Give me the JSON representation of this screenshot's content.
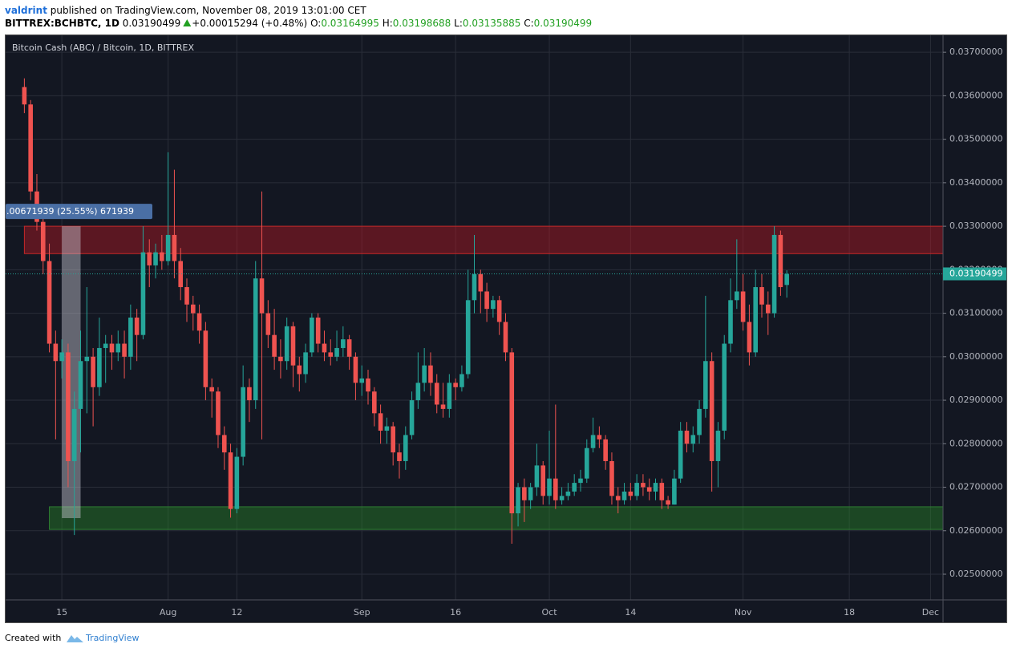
{
  "header": {
    "author": "valdrint",
    "published": "published on TradingView.com, November 08, 2019 13:01:00 CET"
  },
  "quote": {
    "symbol": "BITTREX:BCHBTC, 1D",
    "last": "0.03190499",
    "change": "+0.00015294 (+0.48%)",
    "o_label": "O:",
    "o": "0.03164995",
    "h_label": "H:",
    "h": "0.03198688",
    "l_label": "L:",
    "l": "0.03135885",
    "c_label": "C:",
    "c": "0.03190499"
  },
  "footer": {
    "created": "Created with",
    "brand": "TradingView"
  },
  "chart_data": {
    "type": "candlestick",
    "title": "Bitcoin Cash (ABC) / Bitcoin, 1D, BITTREX",
    "up_color": "#26a69a",
    "down_color": "#ef5350",
    "background": "#131722",
    "grid": true,
    "xlim": [
      "2019-07-06",
      "2019-12-03"
    ],
    "xticks": [
      {
        "value": "2019-07-15",
        "label": "15"
      },
      {
        "value": "2019-08-01",
        "label": "Aug"
      },
      {
        "value": "2019-08-12",
        "label": "12"
      },
      {
        "value": "2019-09-01",
        "label": "Sep"
      },
      {
        "value": "2019-09-16",
        "label": "16"
      },
      {
        "value": "2019-10-01",
        "label": "Oct"
      },
      {
        "value": "2019-10-14",
        "label": "14"
      },
      {
        "value": "2019-11-01",
        "label": "Nov"
      },
      {
        "value": "2019-11-18",
        "label": "18"
      },
      {
        "value": "2019-12-01",
        "label": "Dec"
      }
    ],
    "ylim": [
      0.02441,
      0.03739
    ],
    "yticks": [
      {
        "value": 0.025,
        "label": "0.02500000"
      },
      {
        "value": 0.026,
        "label": "0.02600000"
      },
      {
        "value": 0.027,
        "label": "0.02700000"
      },
      {
        "value": 0.028,
        "label": "0.02800000"
      },
      {
        "value": 0.029,
        "label": "0.02900000"
      },
      {
        "value": 0.03,
        "label": "0.03000000"
      },
      {
        "value": 0.031,
        "label": "0.03100000"
      },
      {
        "value": 0.032,
        "label": "0.03200000"
      },
      {
        "value": 0.033,
        "label": "0.03300000"
      },
      {
        "value": 0.034,
        "label": "0.03400000"
      },
      {
        "value": 0.035,
        "label": "0.03500000"
      },
      {
        "value": 0.036,
        "label": "0.03600000"
      },
      {
        "value": 0.037,
        "label": "0.03700000"
      }
    ],
    "last_price": 0.03190499,
    "last_price_label": "0.03190499",
    "zones": [
      {
        "from": "2019-07-09",
        "ylim": [
          0.03237,
          0.033
        ],
        "color": "rgba(180,25,35,0.45)",
        "border": "#c62828"
      },
      {
        "from": "2019-07-13",
        "ylim": [
          0.02603,
          0.02655
        ],
        "color": "rgba(40,130,40,0.45)",
        "border": "#2e7d32"
      }
    ],
    "measure": {
      "label": ".00671939 (25.55%) 671939",
      "from": "2019-07-15",
      "to": "2019-07-18",
      "ylim": [
        0.02629,
        0.033
      ]
    },
    "x": [
      "2019-07-09",
      "2019-07-10",
      "2019-07-11",
      "2019-07-12",
      "2019-07-13",
      "2019-07-14",
      "2019-07-15",
      "2019-07-16",
      "2019-07-17",
      "2019-07-18",
      "2019-07-19",
      "2019-07-20",
      "2019-07-21",
      "2019-07-22",
      "2019-07-23",
      "2019-07-24",
      "2019-07-25",
      "2019-07-26",
      "2019-07-27",
      "2019-07-28",
      "2019-07-29",
      "2019-07-30",
      "2019-07-31",
      "2019-08-01",
      "2019-08-02",
      "2019-08-03",
      "2019-08-04",
      "2019-08-05",
      "2019-08-06",
      "2019-08-07",
      "2019-08-08",
      "2019-08-09",
      "2019-08-10",
      "2019-08-11",
      "2019-08-12",
      "2019-08-13",
      "2019-08-14",
      "2019-08-15",
      "2019-08-16",
      "2019-08-17",
      "2019-08-18",
      "2019-08-19",
      "2019-08-20",
      "2019-08-21",
      "2019-08-22",
      "2019-08-23",
      "2019-08-24",
      "2019-08-25",
      "2019-08-26",
      "2019-08-27",
      "2019-08-28",
      "2019-08-29",
      "2019-08-30",
      "2019-08-31",
      "2019-09-01",
      "2019-09-02",
      "2019-09-03",
      "2019-09-04",
      "2019-09-05",
      "2019-09-06",
      "2019-09-07",
      "2019-09-08",
      "2019-09-09",
      "2019-09-10",
      "2019-09-11",
      "2019-09-12",
      "2019-09-13",
      "2019-09-14",
      "2019-09-15",
      "2019-09-16",
      "2019-09-17",
      "2019-09-18",
      "2019-09-19",
      "2019-09-20",
      "2019-09-21",
      "2019-09-22",
      "2019-09-23",
      "2019-09-24",
      "2019-09-25",
      "2019-09-26",
      "2019-09-27",
      "2019-09-28",
      "2019-09-29",
      "2019-09-30",
      "2019-10-01",
      "2019-10-02",
      "2019-10-03",
      "2019-10-04",
      "2019-10-05",
      "2019-10-06",
      "2019-10-07",
      "2019-10-08",
      "2019-10-09",
      "2019-10-10",
      "2019-10-11",
      "2019-10-12",
      "2019-10-13",
      "2019-10-14",
      "2019-10-15",
      "2019-10-16",
      "2019-10-17",
      "2019-10-18",
      "2019-10-19",
      "2019-10-20",
      "2019-10-21",
      "2019-10-22",
      "2019-10-23",
      "2019-10-24",
      "2019-10-25",
      "2019-10-26",
      "2019-10-27",
      "2019-10-28",
      "2019-10-29",
      "2019-10-30",
      "2019-10-31",
      "2019-11-01",
      "2019-11-02",
      "2019-11-03",
      "2019-11-04",
      "2019-11-05",
      "2019-11-06",
      "2019-11-07",
      "2019-11-08"
    ],
    "candles": [
      [
        0.0362,
        0.0364,
        0.0356,
        0.0358
      ],
      [
        0.0358,
        0.0359,
        0.0336,
        0.0338
      ],
      [
        0.0338,
        0.0342,
        0.0329,
        0.0331
      ],
      [
        0.0331,
        0.0333,
        0.0319,
        0.0322
      ],
      [
        0.0322,
        0.0326,
        0.0301,
        0.0303
      ],
      [
        0.0303,
        0.0306,
        0.0281,
        0.0299
      ],
      [
        0.0299,
        0.0304,
        0.0295,
        0.0301
      ],
      [
        0.0301,
        0.0303,
        0.027,
        0.0276
      ],
      [
        0.0276,
        0.0292,
        0.0259,
        0.0288
      ],
      [
        0.0288,
        0.0306,
        0.0278,
        0.0299
      ],
      [
        0.0299,
        0.0316,
        0.0287,
        0.03
      ],
      [
        0.03,
        0.0302,
        0.0284,
        0.0293
      ],
      [
        0.0293,
        0.0309,
        0.0291,
        0.0302
      ],
      [
        0.0302,
        0.0305,
        0.0294,
        0.0303
      ],
      [
        0.0303,
        0.0305,
        0.0297,
        0.0301
      ],
      [
        0.0301,
        0.0306,
        0.0299,
        0.0303
      ],
      [
        0.0303,
        0.0306,
        0.0295,
        0.03
      ],
      [
        0.03,
        0.0312,
        0.0297,
        0.0309
      ],
      [
        0.0309,
        0.0311,
        0.0299,
        0.0305
      ],
      [
        0.0305,
        0.033,
        0.0304,
        0.0324
      ],
      [
        0.0324,
        0.0327,
        0.0316,
        0.0321
      ],
      [
        0.0321,
        0.0326,
        0.0318,
        0.0324
      ],
      [
        0.0324,
        0.0328,
        0.032,
        0.0322
      ],
      [
        0.0322,
        0.0347,
        0.0321,
        0.0328
      ],
      [
        0.0328,
        0.0343,
        0.0318,
        0.0322
      ],
      [
        0.0322,
        0.0325,
        0.0313,
        0.0316
      ],
      [
        0.0316,
        0.0318,
        0.0308,
        0.0312
      ],
      [
        0.0312,
        0.0314,
        0.0306,
        0.031
      ],
      [
        0.031,
        0.0312,
        0.0303,
        0.0306
      ],
      [
        0.0306,
        0.0308,
        0.029,
        0.0293
      ],
      [
        0.0293,
        0.0295,
        0.0286,
        0.0292
      ],
      [
        0.0292,
        0.0293,
        0.0279,
        0.0282
      ],
      [
        0.0282,
        0.0284,
        0.0274,
        0.0278
      ],
      [
        0.0278,
        0.028,
        0.0263,
        0.0265
      ],
      [
        0.0265,
        0.0279,
        0.0264,
        0.0277
      ],
      [
        0.0277,
        0.0298,
        0.0275,
        0.0293
      ],
      [
        0.0293,
        0.0295,
        0.0285,
        0.029
      ],
      [
        0.029,
        0.0322,
        0.0288,
        0.0318
      ],
      [
        0.0318,
        0.0338,
        0.0281,
        0.031
      ],
      [
        0.031,
        0.0313,
        0.0302,
        0.0305
      ],
      [
        0.0305,
        0.0311,
        0.0297,
        0.03
      ],
      [
        0.03,
        0.0304,
        0.0295,
        0.0299
      ],
      [
        0.0299,
        0.0309,
        0.0297,
        0.0307
      ],
      [
        0.0307,
        0.0308,
        0.0293,
        0.0298
      ],
      [
        0.0298,
        0.03,
        0.0292,
        0.0296
      ],
      [
        0.0296,
        0.0303,
        0.0294,
        0.0301
      ],
      [
        0.0301,
        0.031,
        0.03,
        0.0309
      ],
      [
        0.0309,
        0.031,
        0.0301,
        0.0303
      ],
      [
        0.0303,
        0.0306,
        0.0299,
        0.0301
      ],
      [
        0.0301,
        0.0304,
        0.0298,
        0.03
      ],
      [
        0.03,
        0.0306,
        0.0299,
        0.0302
      ],
      [
        0.0302,
        0.0307,
        0.03,
        0.0304
      ],
      [
        0.0304,
        0.0305,
        0.0297,
        0.03
      ],
      [
        0.03,
        0.0301,
        0.029,
        0.0294
      ],
      [
        0.0294,
        0.0298,
        0.0291,
        0.0295
      ],
      [
        0.0295,
        0.0297,
        0.0289,
        0.0292
      ],
      [
        0.0292,
        0.0293,
        0.0284,
        0.0287
      ],
      [
        0.0287,
        0.0289,
        0.028,
        0.0283
      ],
      [
        0.0283,
        0.0286,
        0.028,
        0.0284
      ],
      [
        0.0284,
        0.0285,
        0.0275,
        0.0278
      ],
      [
        0.0278,
        0.028,
        0.0272,
        0.0276
      ],
      [
        0.0276,
        0.0284,
        0.0274,
        0.0282
      ],
      [
        0.0282,
        0.0292,
        0.0281,
        0.029
      ],
      [
        0.029,
        0.0301,
        0.0288,
        0.0294
      ],
      [
        0.0294,
        0.0302,
        0.0292,
        0.0298
      ],
      [
        0.0298,
        0.0301,
        0.0291,
        0.0294
      ],
      [
        0.0294,
        0.0296,
        0.0287,
        0.0289
      ],
      [
        0.0289,
        0.0294,
        0.0286,
        0.0288
      ],
      [
        0.0288,
        0.0296,
        0.0286,
        0.0294
      ],
      [
        0.0294,
        0.0295,
        0.029,
        0.0293
      ],
      [
        0.0293,
        0.0298,
        0.0292,
        0.0296
      ],
      [
        0.0296,
        0.032,
        0.0295,
        0.0313
      ],
      [
        0.0313,
        0.0328,
        0.031,
        0.0319
      ],
      [
        0.0319,
        0.032,
        0.031,
        0.0315
      ],
      [
        0.0315,
        0.0317,
        0.0308,
        0.0311
      ],
      [
        0.0311,
        0.0314,
        0.0309,
        0.0313
      ],
      [
        0.0313,
        0.0314,
        0.0305,
        0.0308
      ],
      [
        0.0308,
        0.031,
        0.0299,
        0.0301
      ],
      [
        0.0301,
        0.0302,
        0.0257,
        0.0264
      ],
      [
        0.0264,
        0.0271,
        0.0261,
        0.027
      ],
      [
        0.027,
        0.0272,
        0.0262,
        0.0267
      ],
      [
        0.0267,
        0.0271,
        0.0265,
        0.027
      ],
      [
        0.027,
        0.028,
        0.0268,
        0.0275
      ],
      [
        0.0275,
        0.0276,
        0.0266,
        0.0268
      ],
      [
        0.0268,
        0.0283,
        0.0266,
        0.0272
      ],
      [
        0.0272,
        0.0289,
        0.0265,
        0.0267
      ],
      [
        0.0267,
        0.027,
        0.0266,
        0.0268
      ],
      [
        0.0268,
        0.0271,
        0.0267,
        0.0269
      ],
      [
        0.0269,
        0.0273,
        0.0268,
        0.0271
      ],
      [
        0.0271,
        0.0274,
        0.0269,
        0.0272
      ],
      [
        0.0272,
        0.0281,
        0.0271,
        0.0279
      ],
      [
        0.0279,
        0.0286,
        0.0278,
        0.0282
      ],
      [
        0.0282,
        0.0284,
        0.0279,
        0.0281
      ],
      [
        0.0281,
        0.0282,
        0.0274,
        0.0276
      ],
      [
        0.0276,
        0.0278,
        0.0266,
        0.0268
      ],
      [
        0.0268,
        0.027,
        0.0264,
        0.0267
      ],
      [
        0.0267,
        0.0271,
        0.0266,
        0.0269
      ],
      [
        0.0269,
        0.0271,
        0.0267,
        0.0268
      ],
      [
        0.0268,
        0.0273,
        0.0267,
        0.0271
      ],
      [
        0.0271,
        0.0273,
        0.0268,
        0.027
      ],
      [
        0.027,
        0.0272,
        0.0267,
        0.0269
      ],
      [
        0.0269,
        0.0272,
        0.0267,
        0.0271
      ],
      [
        0.0271,
        0.0272,
        0.0265,
        0.0267
      ],
      [
        0.0267,
        0.0268,
        0.0265,
        0.0266
      ],
      [
        0.0266,
        0.0274,
        0.0266,
        0.0272
      ],
      [
        0.0272,
        0.0285,
        0.0271,
        0.0283
      ],
      [
        0.0283,
        0.0285,
        0.0278,
        0.028
      ],
      [
        0.028,
        0.0284,
        0.0278,
        0.0282
      ],
      [
        0.0282,
        0.029,
        0.028,
        0.0288
      ],
      [
        0.0288,
        0.0314,
        0.0286,
        0.0299
      ],
      [
        0.0299,
        0.0301,
        0.0269,
        0.0276
      ],
      [
        0.0276,
        0.0285,
        0.027,
        0.0283
      ],
      [
        0.0283,
        0.0305,
        0.0281,
        0.0303
      ],
      [
        0.0303,
        0.0318,
        0.0301,
        0.0313
      ],
      [
        0.0313,
        0.0327,
        0.0311,
        0.0315
      ],
      [
        0.0315,
        0.0319,
        0.0306,
        0.0308
      ],
      [
        0.0308,
        0.0312,
        0.0298,
        0.0301
      ],
      [
        0.0301,
        0.032,
        0.03,
        0.0316
      ],
      [
        0.0316,
        0.0319,
        0.0309,
        0.0312
      ],
      [
        0.0312,
        0.0315,
        0.0305,
        0.031
      ],
      [
        0.031,
        0.033,
        0.0309,
        0.0328
      ],
      [
        0.0328,
        0.0329,
        0.0314,
        0.0316
      ],
      [
        0.03164995,
        0.03198688,
        0.03135885,
        0.03190499
      ]
    ]
  }
}
